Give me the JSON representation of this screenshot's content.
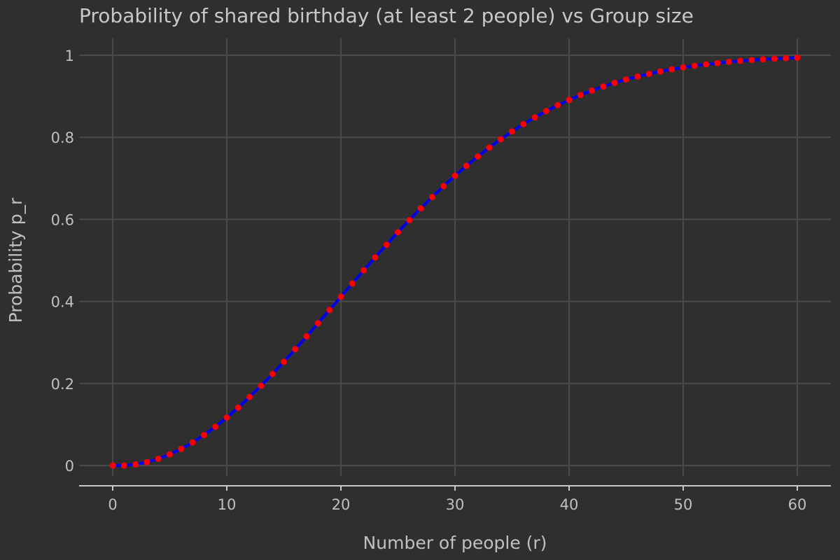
{
  "chart_data": {
    "type": "line",
    "title": "Probability of shared birthday (at least 2 people) vs Group size",
    "xlabel": "Number of people (r)",
    "ylabel": "Probability p_r",
    "xlim": [
      -3,
      63
    ],
    "ylim": [
      0,
      1
    ],
    "x_ticks": [
      0,
      10,
      20,
      30,
      40,
      50,
      60
    ],
    "x_tick_labels": [
      "0",
      "10",
      "20",
      "30",
      "40",
      "50",
      "60"
    ],
    "y_ticks": [
      0,
      0.2,
      0.4,
      0.6,
      0.8,
      1
    ],
    "y_tick_labels": [
      "0",
      "0.2",
      "0.4",
      "0.6",
      "0.8",
      "1"
    ],
    "grid": true,
    "legend": false,
    "series": [
      {
        "name": "p_r",
        "line_color": "#0000ee",
        "marker_color": "#ff0000",
        "line_style": "solid",
        "marker": "circle",
        "x": [
          0,
          1,
          2,
          3,
          4,
          5,
          6,
          7,
          8,
          9,
          10,
          11,
          12,
          13,
          14,
          15,
          16,
          17,
          18,
          19,
          20,
          21,
          22,
          23,
          24,
          25,
          26,
          27,
          28,
          29,
          30,
          31,
          32,
          33,
          34,
          35,
          36,
          37,
          38,
          39,
          40,
          41,
          42,
          43,
          44,
          45,
          46,
          47,
          48,
          49,
          50,
          51,
          52,
          53,
          54,
          55,
          56,
          57,
          58,
          59,
          60
        ],
        "values": [
          0,
          0,
          0.0027,
          0.0082,
          0.0164,
          0.0271,
          0.0405,
          0.0562,
          0.0743,
          0.0946,
          0.1169,
          0.1411,
          0.167,
          0.1944,
          0.2231,
          0.2529,
          0.2836,
          0.315,
          0.3469,
          0.3791,
          0.4114,
          0.4437,
          0.4757,
          0.5073,
          0.5383,
          0.5687,
          0.5982,
          0.6269,
          0.6545,
          0.681,
          0.7063,
          0.7305,
          0.7533,
          0.775,
          0.7953,
          0.8144,
          0.8322,
          0.8487,
          0.8641,
          0.8782,
          0.8912,
          0.9032,
          0.914,
          0.9239,
          0.9329,
          0.941,
          0.9483,
          0.9548,
          0.9606,
          0.9658,
          0.9704,
          0.9744,
          0.978,
          0.9811,
          0.9839,
          0.9863,
          0.9883,
          0.9901,
          0.9917,
          0.993,
          0.9941
        ]
      }
    ]
  },
  "colors": {
    "background": "#2f2f2f",
    "grid": "#4a4a4a",
    "axis": "#c8c8c8",
    "text": "#c0c0c0"
  }
}
